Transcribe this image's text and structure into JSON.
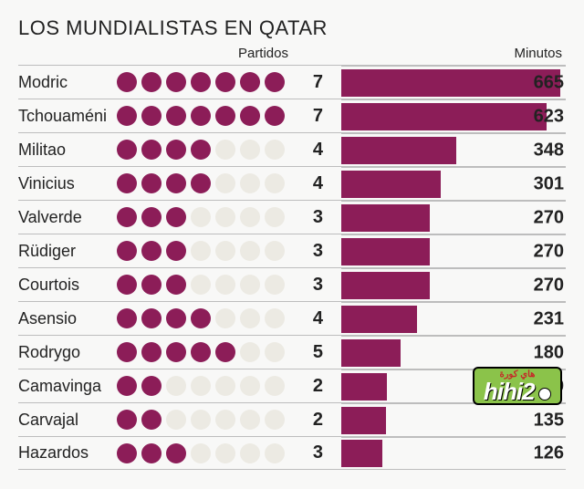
{
  "title": "LOS MUNDIALISTAS EN QATAR",
  "header_matches": "Partidos",
  "header_minutes": "Minutos",
  "max_dots": 7,
  "max_minutes": 665,
  "colors": {
    "fill": "#8c1d58",
    "empty": "#eceae3",
    "text": "#222222",
    "border": "#bdbdbd",
    "background": "#f8f8f7"
  },
  "watermark": {
    "top": "هاي كورة",
    "main": "hihi",
    "suffix": "2"
  },
  "players": [
    {
      "name": "Modric",
      "matches": 7,
      "minutes": 665
    },
    {
      "name": "Tchouaméni",
      "matches": 7,
      "minutes": 623
    },
    {
      "name": "Militao",
      "matches": 4,
      "minutes": 348
    },
    {
      "name": "Vinicius",
      "matches": 4,
      "minutes": 301
    },
    {
      "name": "Valverde",
      "matches": 3,
      "minutes": 270
    },
    {
      "name": "Rüdiger",
      "matches": 3,
      "minutes": 270
    },
    {
      "name": "Courtois",
      "matches": 3,
      "minutes": 270
    },
    {
      "name": "Asensio",
      "matches": 4,
      "minutes": 231
    },
    {
      "name": "Rodrygo",
      "matches": 5,
      "minutes": 180
    },
    {
      "name": "Camavinga",
      "matches": 2,
      "minutes": 139
    },
    {
      "name": "Carvajal",
      "matches": 2,
      "minutes": 135
    },
    {
      "name": "Hazardos",
      "matches": 3,
      "minutes": 126
    }
  ]
}
